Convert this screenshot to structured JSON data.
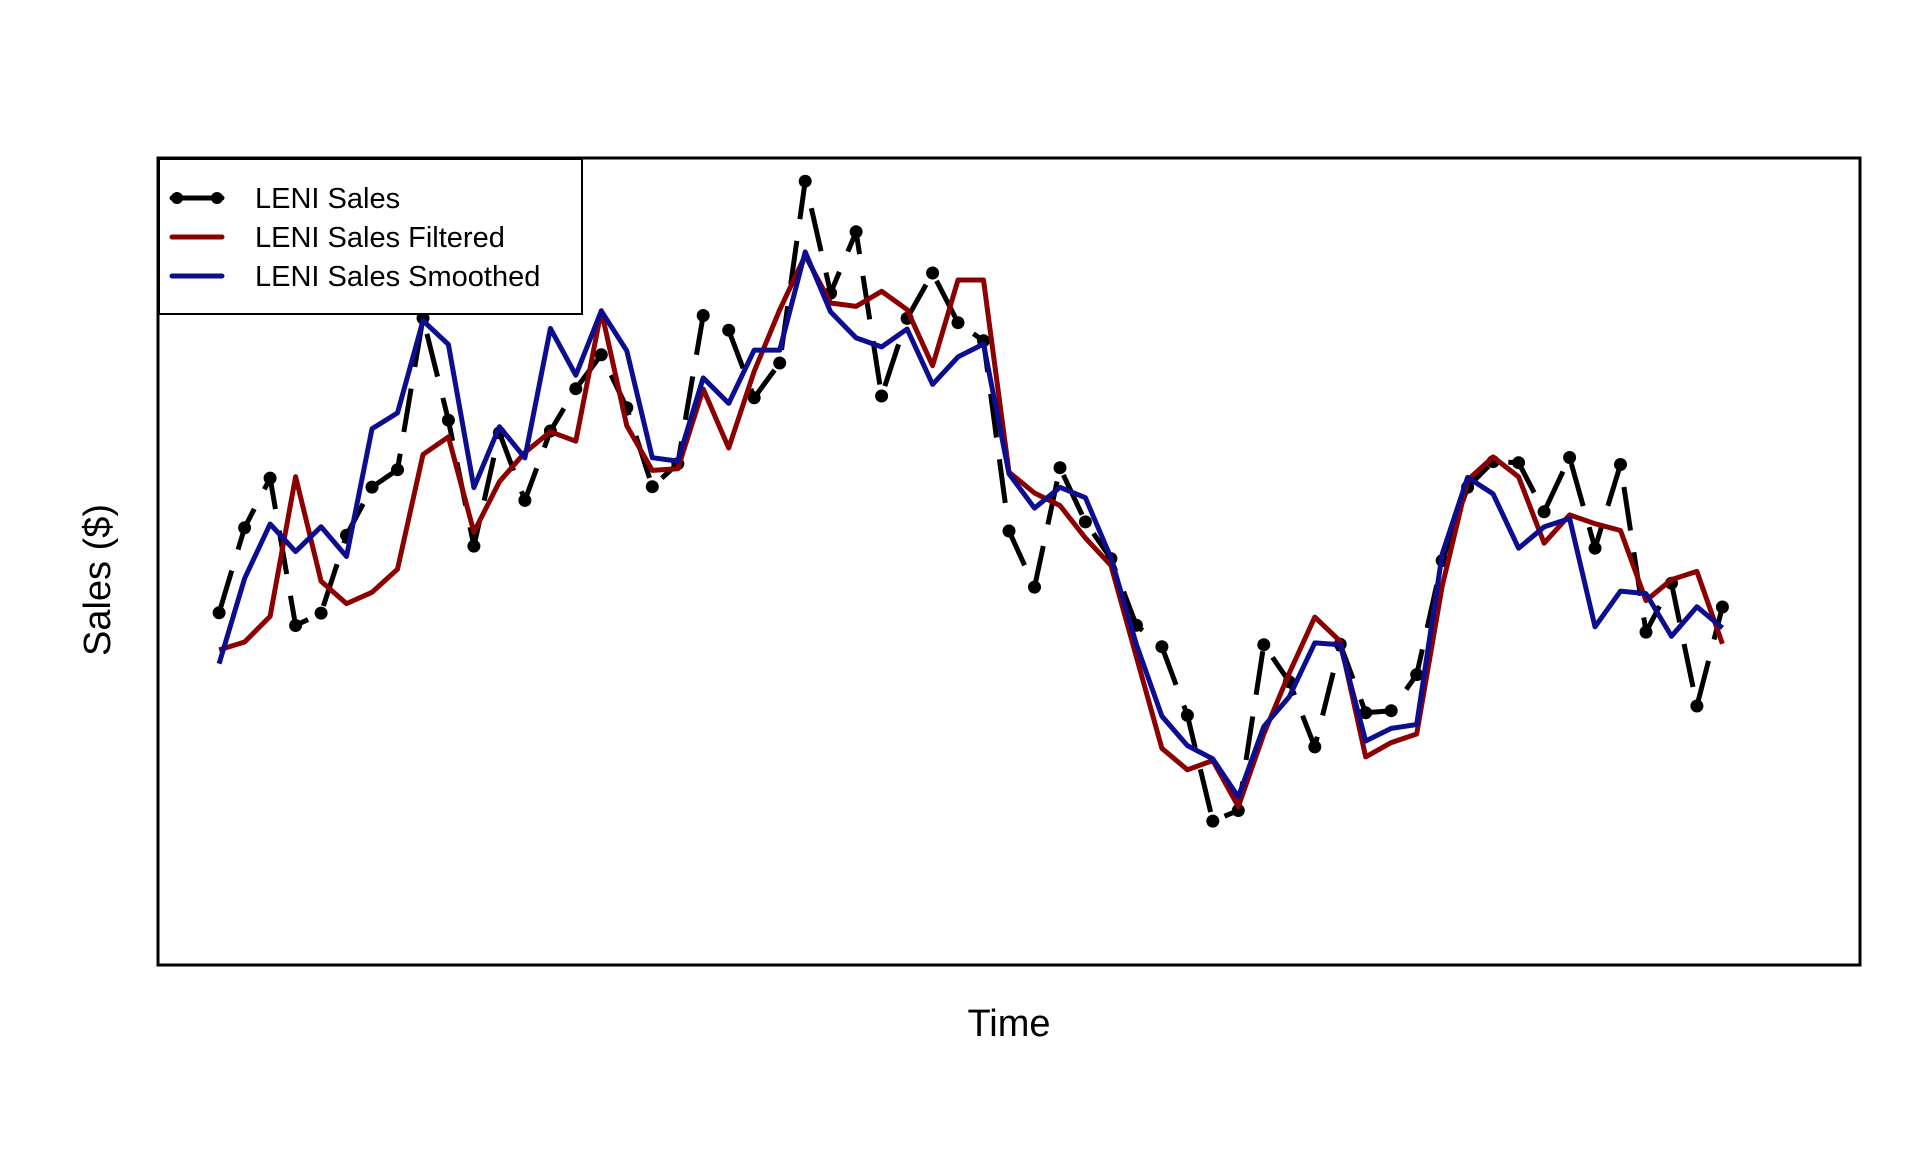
{
  "chart_data": {
    "type": "line",
    "title": "",
    "xlabel": "Time",
    "ylabel": "Sales ($)",
    "x": [
      1,
      2,
      3,
      4,
      5,
      6,
      7,
      8,
      9,
      10,
      11,
      12,
      13,
      14,
      15,
      16,
      17,
      18,
      19,
      20,
      21,
      22,
      23,
      24,
      25,
      26,
      27,
      28,
      29,
      30,
      31,
      32,
      33,
      34,
      35,
      36,
      37,
      38,
      39,
      40,
      41,
      42,
      43,
      44,
      45,
      46,
      47,
      48,
      49,
      50,
      51,
      52,
      53,
      54,
      55,
      56,
      57,
      58,
      59,
      60
    ],
    "xlim": [
      -1.36,
      65.36
    ],
    "ylim": [
      -21.2,
      14.4
    ],
    "axis_ticks": "none",
    "grid": false,
    "legend": {
      "position": "top-left"
    },
    "series": [
      {
        "name": "LENI Sales",
        "color": "#000000",
        "style": "dashed-with-points",
        "values": [
          -5.67,
          -1.91,
          0.29,
          -6.23,
          -5.68,
          -2.24,
          -0.11,
          0.66,
          7.37,
          2.85,
          -2.72,
          2.29,
          -0.7,
          2.37,
          4.24,
          5.74,
          3.4,
          -0.09,
          0.93,
          7.48,
          6.83,
          3.84,
          5.38,
          13.42,
          8.47,
          11.18,
          3.92,
          7.35,
          9.36,
          7.16,
          6.36,
          -2.05,
          -4.53,
          0.75,
          -1.65,
          -3.27,
          -6.22,
          -7.17,
          -10.2,
          -14.88,
          -14.41,
          -7.08,
          -8.72,
          -11.6,
          -7.06,
          -10.09,
          -10.0,
          -8.4,
          -3.36,
          -0.12,
          1.02,
          0.97,
          -1.2,
          1.2,
          -2.81,
          0.89,
          -6.52,
          -4.36,
          -9.79,
          -5.41
        ],
        "note": "60 points"
      },
      {
        "name": "LENI Sales Filtered",
        "color": "#8b0000",
        "style": "solid",
        "values": [
          -7.31,
          -6.96,
          -5.83,
          0.35,
          -4.27,
          -5.26,
          -4.76,
          -3.74,
          1.33,
          2.11,
          -2.1,
          0.13,
          1.42,
          2.34,
          1.92,
          7.69,
          2.6,
          0.63,
          0.7,
          4.23,
          1.62,
          5.01,
          7.73,
          10.13,
          8.03,
          7.88,
          8.55,
          7.74,
          5.26,
          9.05,
          9.05,
          0.55,
          -0.37,
          -0.93,
          -2.36,
          -3.57,
          -7.62,
          -11.66,
          -12.61,
          -12.2,
          -14.24,
          -11.03,
          -8.33,
          -5.86,
          -6.93,
          -12.04,
          -11.41,
          -11.03,
          -4.49,
          0.2,
          1.22,
          0.34,
          -2.59,
          -1.34,
          -1.73,
          -2.03,
          -5.13,
          -4.2,
          -3.84,
          -7.04
        ],
        "note": "60 points"
      },
      {
        "name": "LENI Sales Smoothed",
        "color": "#0d0d8f",
        "style": "solid",
        "values": [
          -7.92,
          -4.15,
          -1.74,
          -2.96,
          -1.86,
          -3.18,
          2.47,
          3.17,
          7.25,
          6.2,
          -0.13,
          2.56,
          1.18,
          6.91,
          4.84,
          7.68,
          5.92,
          1.19,
          1.04,
          4.72,
          3.59,
          5.95,
          5.95,
          10.29,
          7.64,
          6.49,
          6.09,
          6.88,
          4.43,
          5.65,
          6.22,
          0.48,
          -1.04,
          -0.12,
          -0.58,
          -3.23,
          -7.07,
          -10.24,
          -11.54,
          -12.13,
          -13.81,
          -10.7,
          -9.38,
          -7.0,
          -7.08,
          -11.34,
          -10.78,
          -10.61,
          -3.07,
          0.32,
          -0.41,
          -2.81,
          -1.87,
          -1.5,
          -6.29,
          -4.71,
          -4.82,
          -6.71,
          -5.4,
          -6.34
        ],
        "note": "60 points"
      }
    ]
  }
}
